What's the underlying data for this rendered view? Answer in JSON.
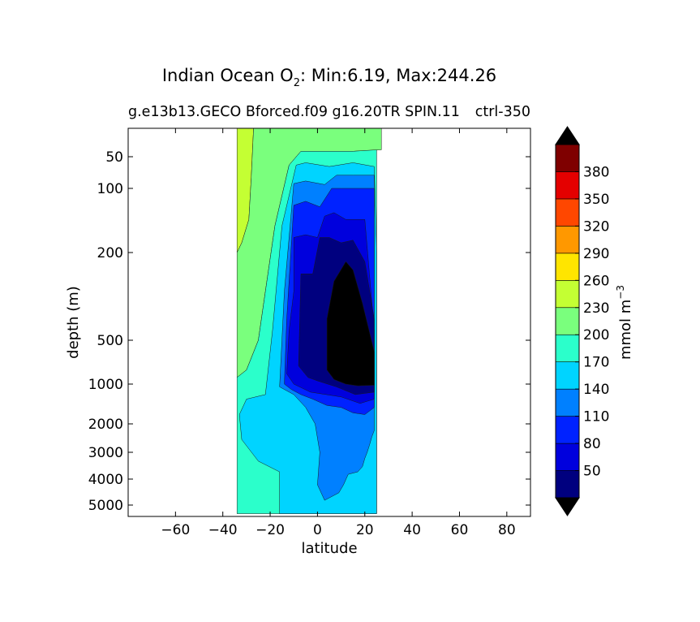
{
  "chart_data": {
    "type": "heatmap",
    "title_main": "Indian Ocean O",
    "title_sub": "2",
    "title_rest": ": Min:6.19, Max:244.26",
    "subtitle_left": "g.e13b13.GECO Bforced.f09 g16.20TR SPIN.11",
    "subtitle_right": "ctrl-350",
    "xlabel": "latitude",
    "ylabel": "depth (m)",
    "xlim": [
      -80,
      90
    ],
    "x_ticks": [
      -60,
      -40,
      -20,
      0,
      20,
      40,
      60,
      80
    ],
    "x_tick_labels": [
      "−60",
      "−40",
      "−20",
      "0",
      "20",
      "40",
      "60",
      "80"
    ],
    "y_ticks": [
      50,
      100,
      200,
      500,
      1000,
      2000,
      3000,
      4000,
      5000
    ],
    "y_tick_labels": [
      "50",
      "100",
      "200",
      "500",
      "1000",
      "2000",
      "3000",
      "4000",
      "5000"
    ],
    "colorbar": {
      "label": "mmol m",
      "label_sup": "−3",
      "extend": "both",
      "levels": [
        20,
        50,
        80,
        110,
        140,
        170,
        200,
        230,
        260,
        290,
        320,
        350,
        380,
        410
      ],
      "tick_labels": [
        "50",
        "80",
        "110",
        "140",
        "170",
        "200",
        "230",
        "260",
        "290",
        "320",
        "350",
        "380"
      ],
      "colors": [
        "#00007f",
        "#0000dd",
        "#0022ff",
        "#0080ff",
        "#00d4ff",
        "#2bffcb",
        "#7aff7d",
        "#c4ff33",
        "#ffe500",
        "#ff9800",
        "#ff4700",
        "#e40000",
        "#7f0000"
      ],
      "under_color": "#000000",
      "over_color": "#000000"
    },
    "regions": [
      {
        "name": "band-200-230",
        "color": "#c4ff33",
        "outline": [
          [
            -34,
            20
          ],
          [
            -27,
            20
          ],
          [
            -28,
            80
          ],
          [
            -29,
            140
          ],
          [
            -32,
            180
          ],
          [
            -34,
            200
          ]
        ]
      },
      {
        "name": "band-170-200",
        "color": "#7aff7d",
        "outline": [
          [
            -27,
            20
          ],
          [
            27,
            20
          ],
          [
            27,
            40
          ],
          [
            15,
            42
          ],
          [
            -7,
            42
          ],
          [
            -12,
            60
          ],
          [
            -18,
            150
          ],
          [
            -22,
            300
          ],
          [
            -25,
            500
          ],
          [
            -30,
            800
          ],
          [
            -34,
            900
          ],
          [
            -34,
            200
          ],
          [
            -32,
            180
          ],
          [
            -29,
            140
          ],
          [
            -28,
            80
          ]
        ]
      },
      {
        "name": "band-140-170",
        "color": "#2bffcb",
        "outline": [
          [
            -7,
            42
          ],
          [
            15,
            42
          ],
          [
            25,
            40
          ],
          [
            25,
            200
          ],
          [
            25,
            5300
          ],
          [
            -34,
            5300
          ],
          [
            -34,
            900
          ],
          [
            -30,
            800
          ],
          [
            -25,
            500
          ],
          [
            -22,
            300
          ],
          [
            -18,
            150
          ],
          [
            -12,
            60
          ]
        ]
      },
      {
        "name": "band-110-140",
        "color": "#00d4ff",
        "outline": [
          [
            -16,
            3700
          ],
          [
            -25,
            3300
          ],
          [
            -32,
            2500
          ],
          [
            -33,
            1700
          ],
          [
            -30,
            1300
          ],
          [
            -22,
            1200
          ],
          [
            -19,
            450
          ],
          [
            -15,
            150
          ],
          [
            -9,
            60
          ],
          [
            -5,
            57
          ],
          [
            5,
            62
          ],
          [
            15,
            57
          ],
          [
            24,
            62
          ],
          [
            25,
            200
          ],
          [
            25,
            5300
          ],
          [
            -16,
            5300
          ]
        ]
      },
      {
        "name": "band-80-110",
        "color": "#0080ff",
        "outline": [
          [
            -16,
            1050
          ],
          [
            -14,
            300
          ],
          [
            -10,
            90
          ],
          [
            -5,
            85
          ],
          [
            3,
            92
          ],
          [
            8,
            75
          ],
          [
            15,
            75
          ],
          [
            24,
            75
          ],
          [
            24,
            2200
          ],
          [
            23,
            2400
          ],
          [
            22,
            2700
          ],
          [
            21,
            3000
          ],
          [
            20,
            3200
          ],
          [
            19,
            3500
          ],
          [
            17,
            3700
          ],
          [
            13,
            3800
          ],
          [
            11,
            4200
          ],
          [
            9,
            4500
          ],
          [
            3,
            4800
          ],
          [
            0,
            4200
          ],
          [
            1,
            3000
          ],
          [
            -1,
            2000
          ],
          [
            -5,
            1500
          ],
          [
            -10,
            1200
          ]
        ]
      },
      {
        "name": "band-50-80",
        "color": "#0022ff",
        "outline": [
          [
            -14,
            1000
          ],
          [
            -13,
            400
          ],
          [
            -10,
            120
          ],
          [
            -5,
            115
          ],
          [
            1,
            122
          ],
          [
            6,
            100
          ],
          [
            10,
            100
          ],
          [
            24,
            100
          ],
          [
            24,
            1500
          ],
          [
            20,
            1700
          ],
          [
            15,
            1650
          ],
          [
            10,
            1500
          ],
          [
            4,
            1450
          ],
          [
            -2,
            1300
          ],
          [
            -7,
            1200
          ],
          [
            -11,
            1100
          ]
        ]
      },
      {
        "name": "band-20-50",
        "color": "#0000dd",
        "outline": [
          [
            -13,
            850
          ],
          [
            -12,
            450
          ],
          [
            -10,
            300
          ],
          [
            -10,
            170
          ],
          [
            -5,
            165
          ],
          [
            0,
            170
          ],
          [
            3,
            135
          ],
          [
            7,
            130
          ],
          [
            12,
            140
          ],
          [
            20,
            140
          ],
          [
            24,
            450
          ],
          [
            24,
            1300
          ],
          [
            18,
            1400
          ],
          [
            10,
            1250
          ],
          [
            -3,
            1150
          ],
          [
            -10,
            1000
          ]
        ]
      },
      {
        "name": "band-below-20",
        "color": "#00007f",
        "outline": [
          [
            -8,
            750
          ],
          [
            -7,
            250
          ],
          [
            -2,
            250
          ],
          [
            1,
            170
          ],
          [
            5,
            170
          ],
          [
            10,
            180
          ],
          [
            15,
            175
          ],
          [
            20,
            220
          ],
          [
            24,
            400
          ],
          [
            24,
            1150
          ],
          [
            16,
            1200
          ],
          [
            8,
            1050
          ],
          [
            0,
            950
          ],
          [
            -4,
            900
          ]
        ]
      },
      {
        "name": "region-under",
        "color": "#000000",
        "outline": [
          [
            4,
            800
          ],
          [
            4,
            400
          ],
          [
            7,
            270
          ],
          [
            12,
            220
          ],
          [
            15,
            240
          ],
          [
            19,
            340
          ],
          [
            24,
            600
          ],
          [
            24,
            1020
          ],
          [
            17,
            1030
          ],
          [
            12,
            1000
          ],
          [
            7,
            930
          ]
        ]
      }
    ]
  }
}
